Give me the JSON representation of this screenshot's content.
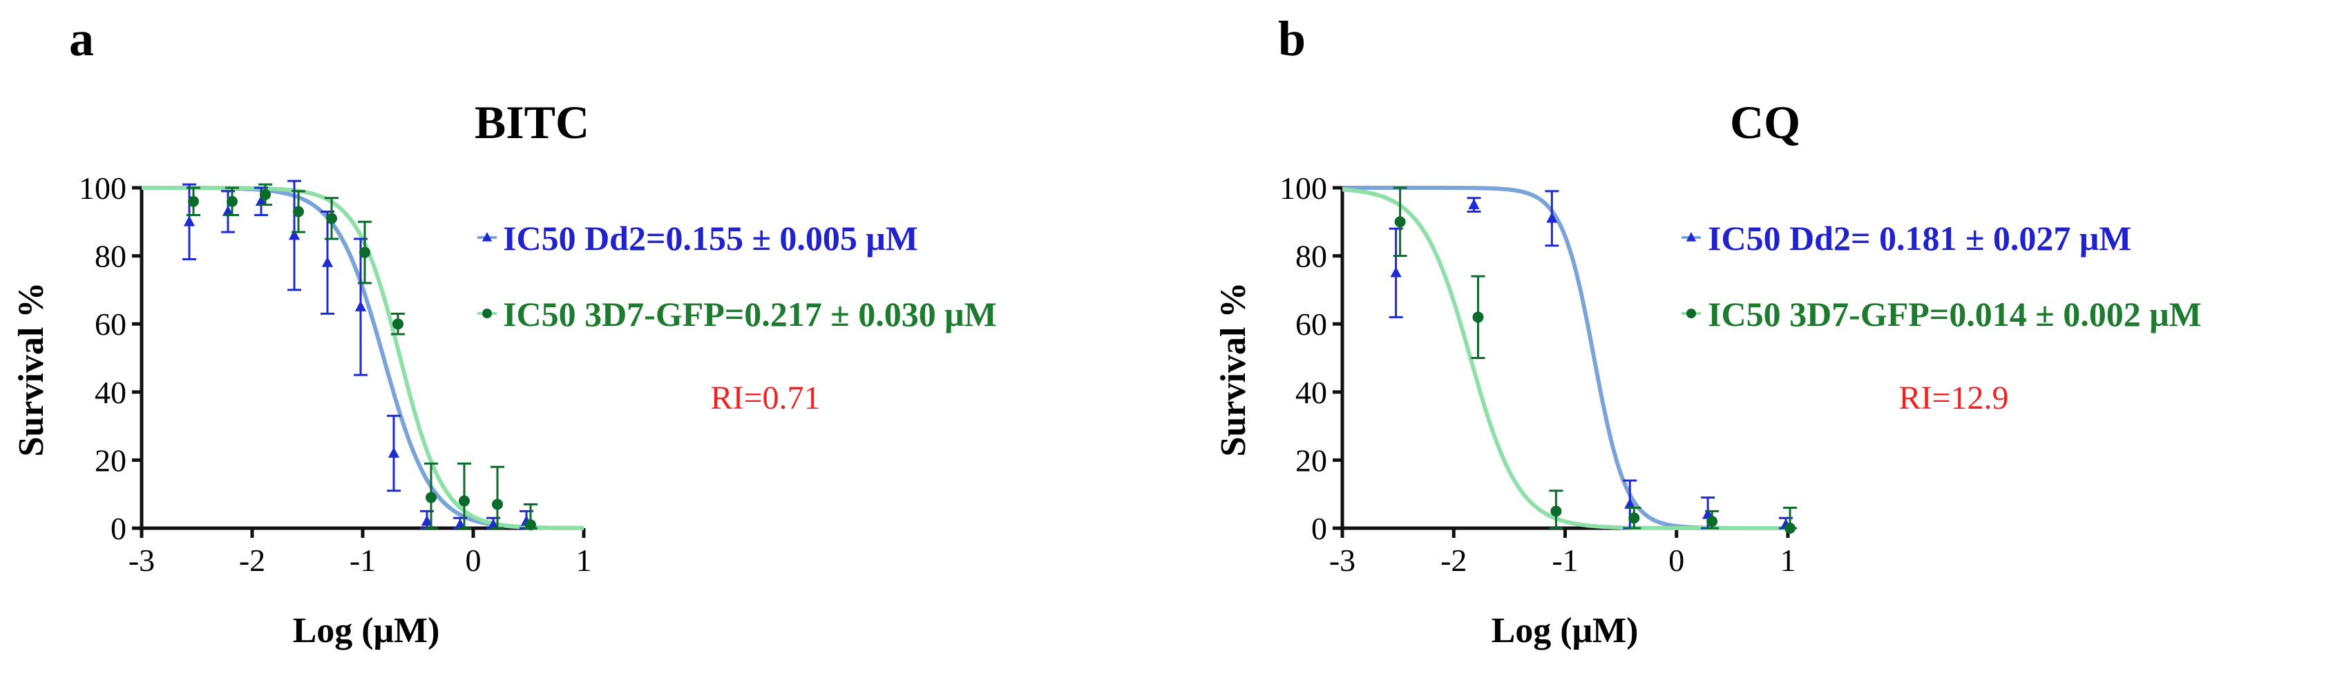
{
  "colors": {
    "dd2_line": "#7aa3d8",
    "dd2_marker": "#1f2ad0",
    "gfp_line": "#8fe0a8",
    "gfp_marker": "#0b6b2a",
    "legend_dd2": "#2222cc",
    "legend_gfp": "#1e7a2e",
    "ri": "#ee2222",
    "axis": "#111111"
  },
  "chart_data": [
    {
      "panel": "a",
      "type": "scatter",
      "title": "BITC",
      "xlabel": "Log (μM)",
      "ylabel": "Survival %",
      "xlim": [
        -3,
        1
      ],
      "ylim": [
        0,
        100
      ],
      "xticks": [
        -3,
        -2,
        -1,
        0,
        1
      ],
      "yticks": [
        0,
        20,
        40,
        60,
        80,
        100
      ],
      "legend": [
        "IC50 Dd2=0.155 ± 0.005 μM",
        "IC50 3D7-GFP=0.217 ± 0.030 μM"
      ],
      "ri_text": "RI=0.71",
      "series": [
        {
          "name": "Dd2",
          "marker": "triangle",
          "logIC50": -0.81,
          "hill": -2.0,
          "points": [
            {
              "x": -2.55,
              "y": 90,
              "err": 11
            },
            {
              "x": -2.2,
              "y": 93,
              "err": 6
            },
            {
              "x": -1.9,
              "y": 96,
              "err": 4
            },
            {
              "x": -1.6,
              "y": 86,
              "err": 16
            },
            {
              "x": -1.3,
              "y": 78,
              "err": 15
            },
            {
              "x": -1.0,
              "y": 65,
              "err": 20
            },
            {
              "x": -0.7,
              "y": 22,
              "err": 11
            },
            {
              "x": -0.4,
              "y": 2,
              "err": 3
            },
            {
              "x": -0.1,
              "y": 1,
              "err": 2
            },
            {
              "x": 0.2,
              "y": 1,
              "err": 2
            },
            {
              "x": 0.5,
              "y": 2,
              "err": 3
            }
          ]
        },
        {
          "name": "3D7-GFP",
          "marker": "circle",
          "logIC50": -0.66,
          "hill": -2.2,
          "points": [
            {
              "x": -2.55,
              "y": 96,
              "err": 4
            },
            {
              "x": -2.2,
              "y": 96,
              "err": 4
            },
            {
              "x": -1.9,
              "y": 98,
              "err": 3
            },
            {
              "x": -1.6,
              "y": 93,
              "err": 6
            },
            {
              "x": -1.3,
              "y": 91,
              "err": 6
            },
            {
              "x": -1.0,
              "y": 81,
              "err": 9
            },
            {
              "x": -0.7,
              "y": 60,
              "err": 3
            },
            {
              "x": -0.4,
              "y": 9,
              "err": 10
            },
            {
              "x": -0.1,
              "y": 8,
              "err": 11
            },
            {
              "x": 0.2,
              "y": 7,
              "err": 11
            },
            {
              "x": 0.5,
              "y": 1,
              "err": 6
            }
          ]
        }
      ]
    },
    {
      "panel": "b",
      "type": "scatter",
      "title": "CQ",
      "xlabel": "Log (μM)",
      "ylabel": "Survival %",
      "xlim": [
        -3,
        1
      ],
      "ylim": [
        0,
        100
      ],
      "xticks": [
        -3,
        -2,
        -1,
        0,
        1
      ],
      "yticks": [
        0,
        20,
        40,
        60,
        80,
        100
      ],
      "legend": [
        "IC50 Dd2= 0.181 ± 0.027 μM",
        "IC50 3D7-GFP=0.014 ± 0.002 μM"
      ],
      "ri_text": "RI=12.9",
      "series": [
        {
          "name": "Dd2",
          "marker": "triangle",
          "logIC50": -0.74,
          "hill": -3.0,
          "points": [
            {
              "x": -2.5,
              "y": 75,
              "err": 13
            },
            {
              "x": -1.8,
              "y": 95,
              "err": 2
            },
            {
              "x": -1.1,
              "y": 91,
              "err": 8
            },
            {
              "x": -0.4,
              "y": 7,
              "err": 7
            },
            {
              "x": 0.3,
              "y": 4,
              "err": 5
            },
            {
              "x": 1.0,
              "y": 1,
              "err": 2
            }
          ]
        },
        {
          "name": "3D7-GFP",
          "marker": "circle",
          "logIC50": -1.85,
          "hill": -2.0,
          "points": [
            {
              "x": -2.5,
              "y": 90,
              "err": 10
            },
            {
              "x": -1.8,
              "y": 62,
              "err": 12
            },
            {
              "x": -1.1,
              "y": 5,
              "err": 6
            },
            {
              "x": -0.4,
              "y": 3,
              "err": 3
            },
            {
              "x": 0.3,
              "y": 2,
              "err": 3
            },
            {
              "x": 1.0,
              "y": 0,
              "err": 6
            }
          ]
        }
      ]
    }
  ]
}
